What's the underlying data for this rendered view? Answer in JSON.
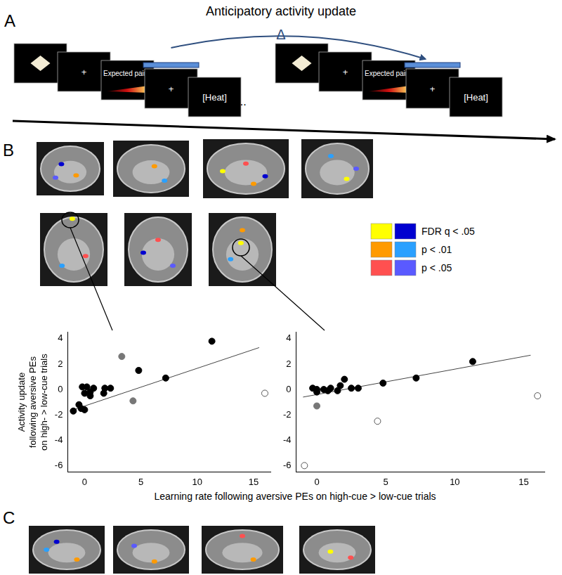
{
  "panel_a": {
    "label": "A",
    "arrow_label": "Anticipatory activity update",
    "delta": "Δ",
    "trial_screens": [
      "+",
      "Expected pain?",
      "+",
      "[Heat]"
    ],
    "ellipsis": "..."
  },
  "panel_b": {
    "label": "B",
    "color_legend": [
      {
        "label": "FDR q < .05",
        "colors": [
          "#ffff00",
          "#0000d0"
        ]
      },
      {
        "label": "p < .01",
        "colors": [
          "#ff9a00",
          "#2aa0ff"
        ]
      },
      {
        "label": "p < .05",
        "colors": [
          "#ff5050",
          "#5a5aff"
        ]
      }
    ],
    "x_label": "Learning rate following aversive PEs on high-cue > low-cue trials"
  },
  "panel_c": {
    "label": "C"
  },
  "chart_data": [
    {
      "type": "scatter",
      "y_label": [
        "Activity update",
        "following aversive PEs",
        "on high- > low-cue trials"
      ],
      "xlim": [
        -1.5,
        16.5
      ],
      "xticks": [
        0,
        5,
        10,
        15
      ],
      "ylim": [
        -6.5,
        4.5
      ],
      "yticks": [
        -6,
        -4,
        -2,
        0,
        2,
        4
      ],
      "grid": false,
      "series": [
        {
          "color": "#000000",
          "marker": "circle",
          "x": [
            -1,
            -0.5,
            -0.3,
            0,
            -0.2,
            0.2,
            0,
            0.5,
            0.5,
            0.8,
            1.7,
            1.8,
            2.3,
            4.8,
            7.2,
            11.3
          ],
          "values": [
            -1.7,
            -1.2,
            -1.5,
            -1.6,
            0.2,
            0.2,
            -0.3,
            -0.2,
            -0.5,
            0.1,
            -0.3,
            0.1,
            0.1,
            1.5,
            0.9,
            3.8
          ]
        },
        {
          "color": "#777777",
          "marker": "circle",
          "x": [
            3.3,
            4.3
          ],
          "values": [
            2.6,
            -0.9
          ]
        },
        {
          "color": "#555555",
          "marker": "open",
          "x": [
            16
          ],
          "values": [
            -0.3
          ]
        }
      ],
      "fit_line": {
        "x": [
          -1,
          15.5
        ],
        "y": [
          -1.6,
          3.3
        ]
      }
    },
    {
      "type": "scatter",
      "xlim": [
        -1.5,
        16.5
      ],
      "xticks": [
        0,
        5,
        10,
        15
      ],
      "ylim": [
        -6.5,
        4.5
      ],
      "yticks": [
        -6,
        -4,
        -2,
        0,
        2,
        4
      ],
      "grid": false,
      "series": [
        {
          "color": "#000000",
          "marker": "circle",
          "x": [
            -0.3,
            0,
            0,
            0.5,
            0.8,
            1,
            1.5,
            1.7,
            2,
            2.5,
            3,
            4.8,
            7.2,
            11.3
          ],
          "values": [
            0.1,
            0,
            -0.2,
            0,
            -0.1,
            0.1,
            -0.1,
            0.3,
            0.8,
            0.1,
            0.1,
            0.5,
            0.9,
            2.2
          ]
        },
        {
          "color": "#777777",
          "marker": "circle",
          "x": [
            0
          ],
          "values": [
            -1.3
          ]
        },
        {
          "color": "#555555",
          "marker": "open",
          "x": [
            -0.9,
            4.4,
            16
          ],
          "values": [
            -6,
            -2.5,
            -0.5
          ]
        }
      ],
      "fit_line": {
        "x": [
          -1,
          15.5
        ],
        "y": [
          -0.6,
          2.7
        ]
      }
    }
  ]
}
